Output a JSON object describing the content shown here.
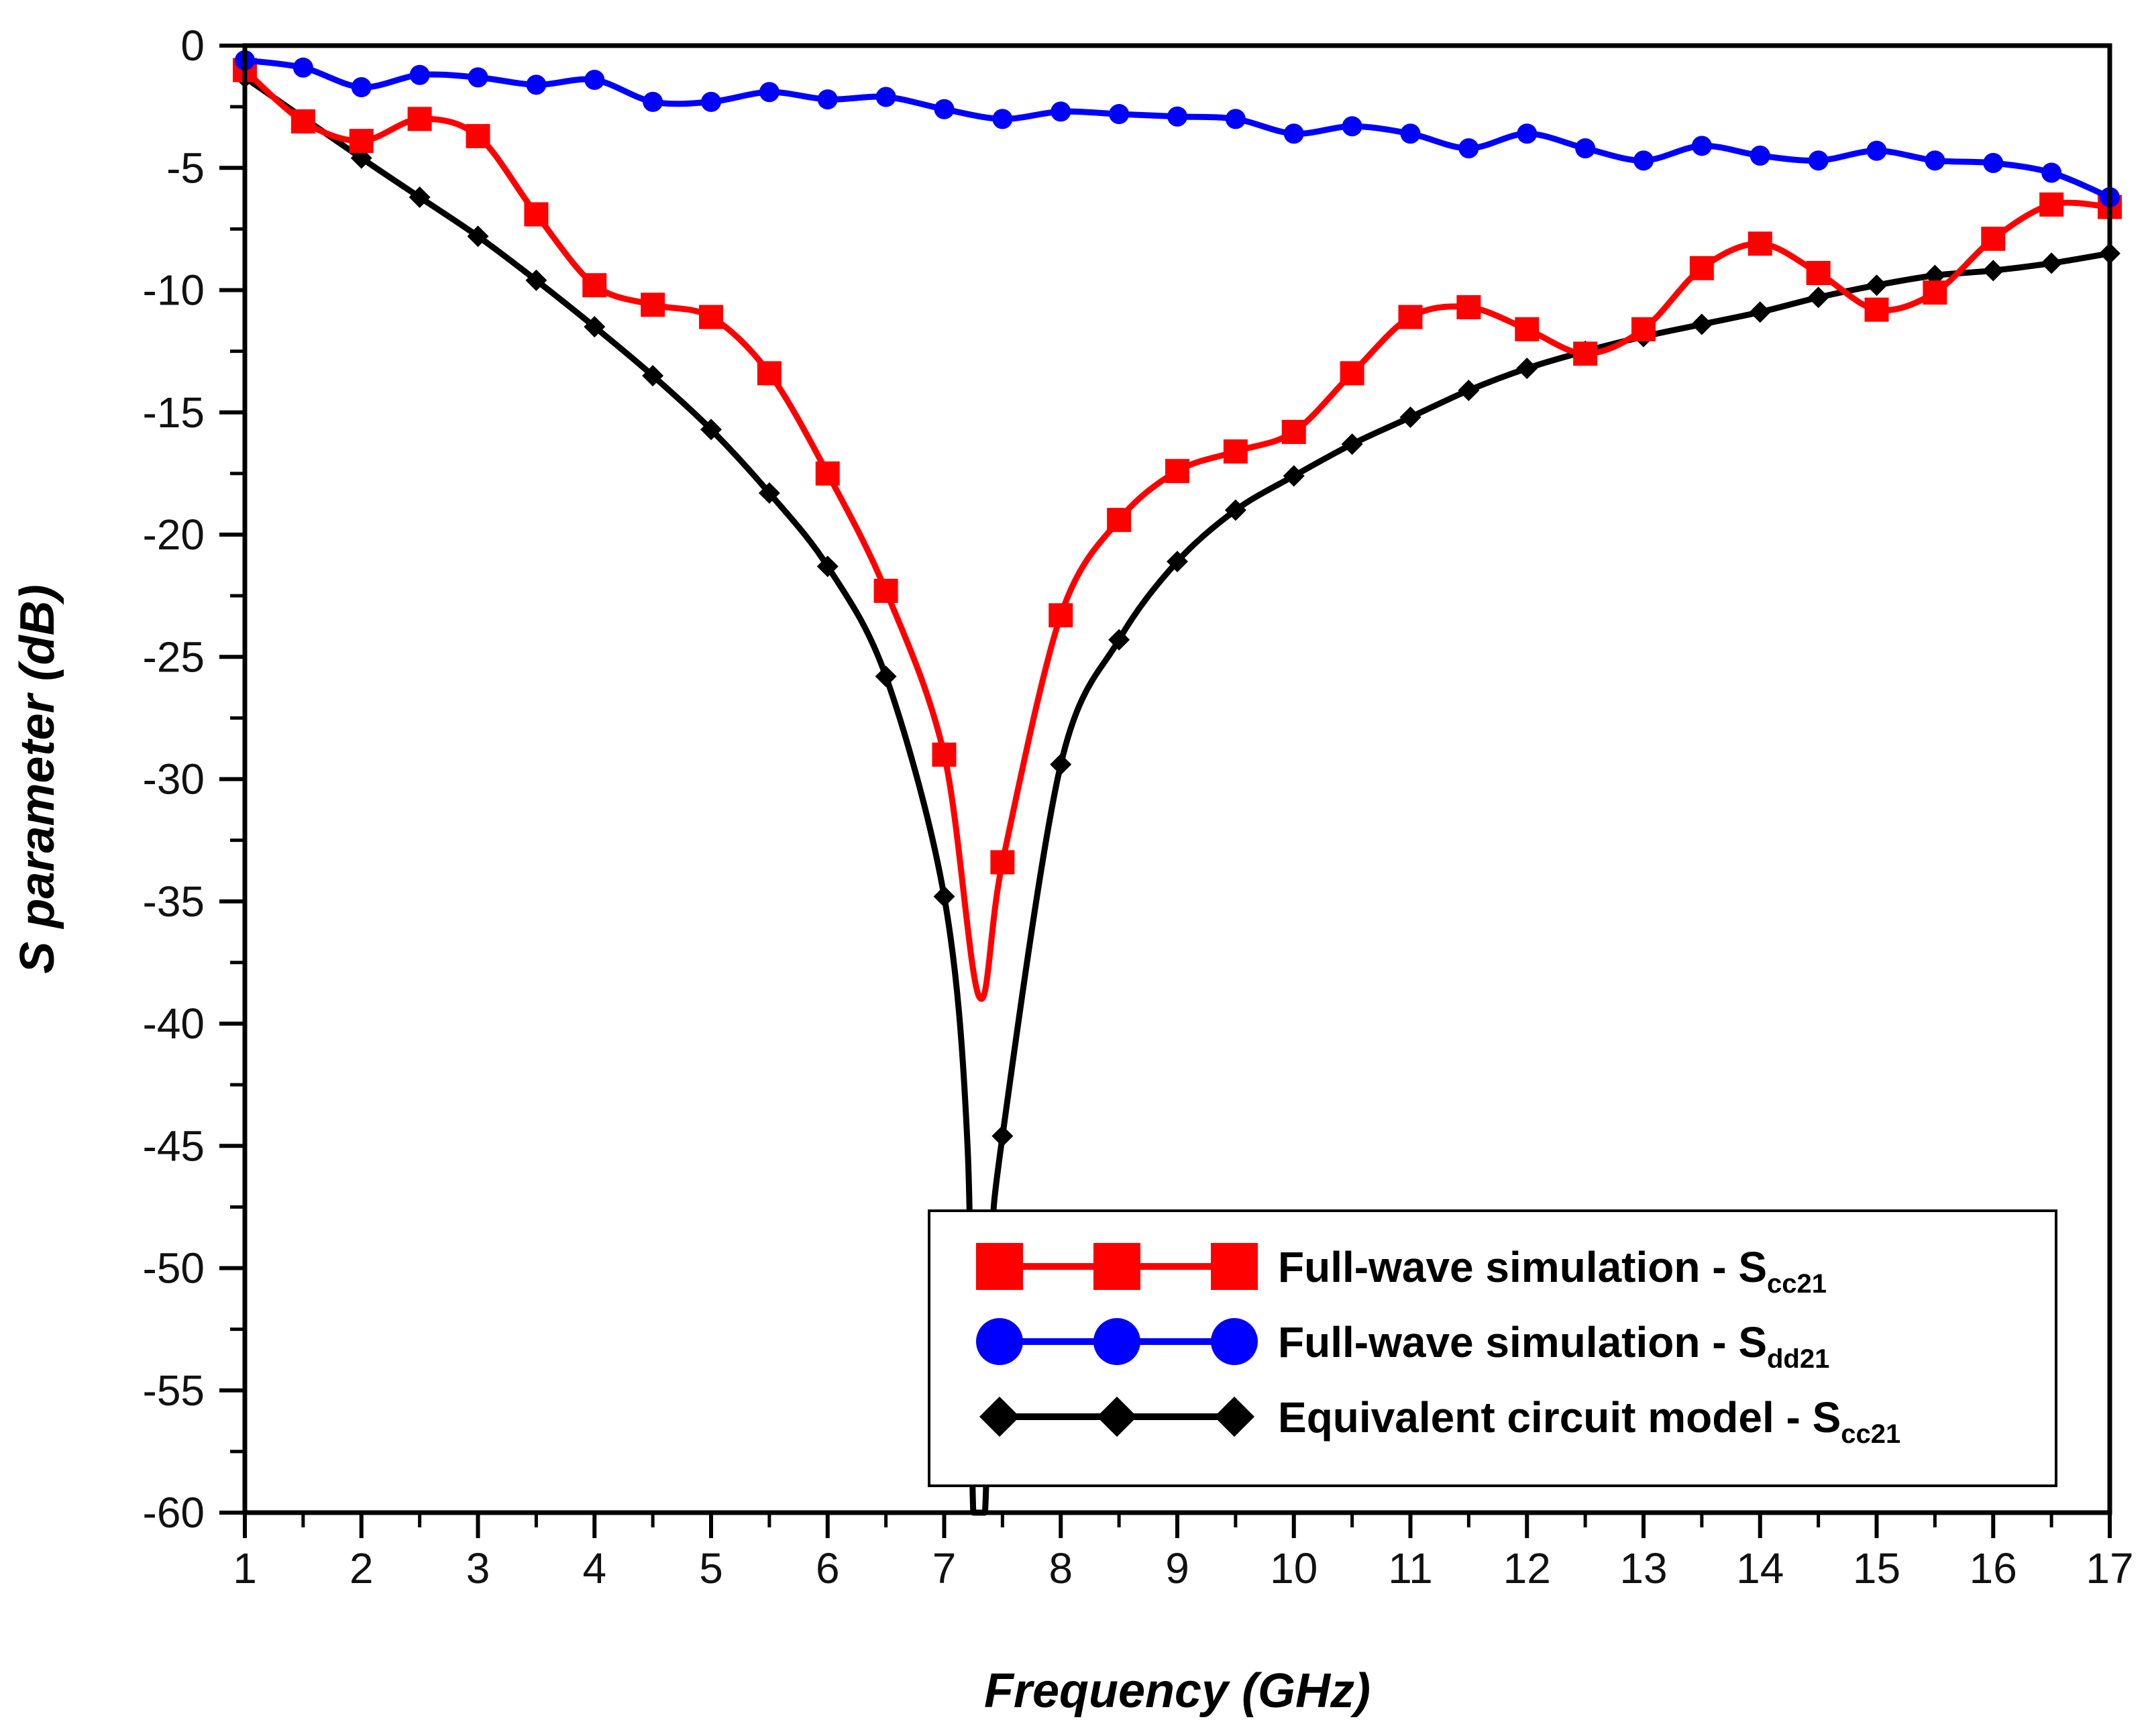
{
  "chart_data": {
    "type": "line",
    "title": "",
    "xlabel": "Frequency (GHz)",
    "ylabel": "S parameter (dB)",
    "xlim": [
      1,
      17
    ],
    "ylim": [
      -60,
      0
    ],
    "xticks": [
      1,
      2,
      3,
      4,
      5,
      6,
      7,
      8,
      9,
      10,
      11,
      12,
      13,
      14,
      15,
      16,
      17
    ],
    "yticks": [
      0,
      -5,
      -10,
      -15,
      -20,
      -25,
      -30,
      -35,
      -40,
      -45,
      -50,
      -55,
      -60
    ],
    "grid": false,
    "legend_position": "bottom-right",
    "series": [
      {
        "name": "Full-wave simulation - Scc21",
        "legend_main": "Full-wave simulation - S",
        "legend_sub": "cc21",
        "color": "#ff0000",
        "marker": "square",
        "x": [
          1,
          1.5,
          2,
          2.5,
          3,
          3.5,
          4,
          4.5,
          5,
          5.5,
          6,
          6.5,
          7,
          7.3,
          7.5,
          8,
          8.5,
          9,
          9.5,
          10,
          10.5,
          11,
          11.5,
          12,
          12.5,
          13,
          13.5,
          14,
          14.5,
          15,
          15.5,
          16,
          16.5,
          17
        ],
        "y": [
          -1.0,
          -3.1,
          -3.9,
          -3.0,
          -3.7,
          -6.9,
          -9.8,
          -10.6,
          -11.1,
          -13.4,
          -17.5,
          -22.3,
          -29.0,
          -38.9,
          -33.4,
          -23.3,
          -19.4,
          -17.4,
          -16.6,
          -15.8,
          -13.4,
          -11.1,
          -10.7,
          -11.6,
          -12.6,
          -11.6,
          -9.1,
          -8.1,
          -9.3,
          -10.8,
          -10.1,
          -7.9,
          -6.5,
          -6.6
        ],
        "marker_mask": [
          true,
          true,
          true,
          true,
          true,
          true,
          true,
          true,
          true,
          true,
          true,
          true,
          true,
          false,
          true,
          true,
          true,
          true,
          true,
          true,
          true,
          true,
          true,
          true,
          true,
          true,
          true,
          true,
          true,
          true,
          true,
          true,
          true,
          true
        ]
      },
      {
        "name": "Full-wave simulation - Sdd21",
        "legend_main": "Full-wave simulation - S",
        "legend_sub": "dd21",
        "color": "#0000ff",
        "marker": "circle",
        "x": [
          1,
          1.5,
          2,
          2.5,
          3,
          3.5,
          4,
          4.5,
          5,
          5.5,
          6,
          6.5,
          7,
          7.5,
          8,
          8.5,
          9,
          9.5,
          10,
          10.5,
          11,
          11.5,
          12,
          12.5,
          13,
          13.5,
          14,
          14.5,
          15,
          15.5,
          16,
          16.5,
          17
        ],
        "y": [
          -0.6,
          -0.9,
          -1.7,
          -1.2,
          -1.3,
          -1.6,
          -1.4,
          -2.3,
          -2.3,
          -1.9,
          -2.2,
          -2.1,
          -2.6,
          -3.0,
          -2.7,
          -2.8,
          -2.9,
          -3.0,
          -3.6,
          -3.3,
          -3.6,
          -4.2,
          -3.6,
          -4.2,
          -4.7,
          -4.1,
          -4.5,
          -4.7,
          -4.3,
          -4.7,
          -4.8,
          -5.2,
          -6.2
        ]
      },
      {
        "name": "Equivalent circuit model - Scc21",
        "legend_main": "Equivalent circuit model - S",
        "legend_sub": "cc21",
        "color": "#000000",
        "marker": "diamond",
        "x": [
          1,
          2,
          2.5,
          3,
          3.5,
          4,
          4.5,
          5,
          5.5,
          6,
          6.5,
          7,
          7.2,
          7.25,
          7.35,
          7.4,
          7.5,
          8,
          8.5,
          9,
          9.5,
          10,
          10.5,
          11,
          11.5,
          12,
          12.5,
          13,
          13.5,
          14,
          14.5,
          15,
          15.5,
          16,
          16.5,
          17
        ],
        "y": [
          -1.3,
          -4.6,
          -6.2,
          -7.8,
          -9.6,
          -11.5,
          -13.5,
          -15.7,
          -18.3,
          -21.3,
          -25.8,
          -34.8,
          -45.0,
          -60.0,
          -60.0,
          -50.0,
          -44.6,
          -29.4,
          -24.3,
          -21.1,
          -19.0,
          -17.6,
          -16.3,
          -15.2,
          -14.1,
          -13.2,
          -12.5,
          -11.9,
          -11.4,
          -10.9,
          -10.3,
          -9.8,
          -9.4,
          -9.2,
          -8.9,
          -8.5
        ],
        "marker_mask": [
          true,
          true,
          true,
          true,
          true,
          true,
          true,
          true,
          true,
          true,
          true,
          true,
          false,
          false,
          false,
          false,
          true,
          true,
          true,
          true,
          true,
          true,
          true,
          true,
          true,
          true,
          true,
          true,
          true,
          true,
          true,
          true,
          true,
          true,
          true,
          true
        ]
      }
    ]
  }
}
